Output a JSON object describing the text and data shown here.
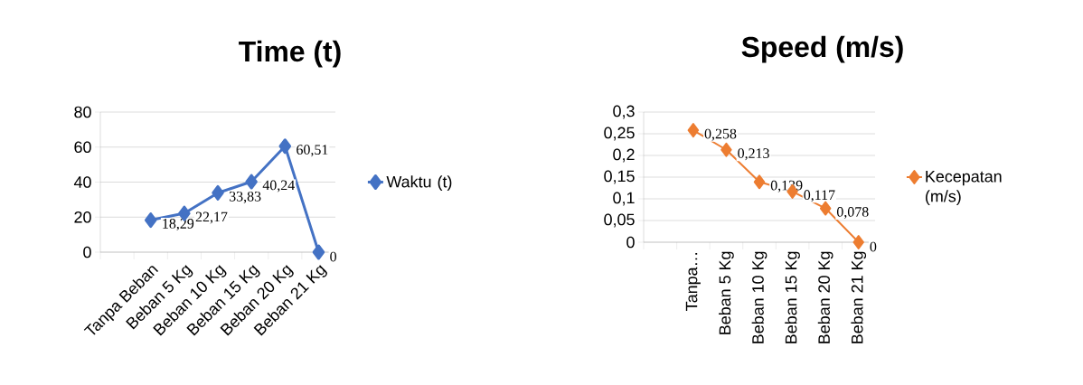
{
  "chart_data": [
    {
      "type": "line",
      "title": "Time (t)",
      "categories": [
        null,
        "Tanpa Beban",
        "Beban 5 Kg",
        "Beban 10 Kg",
        "Beban 15 Kg",
        "Beban 20 Kg",
        "Beban 21 Kg"
      ],
      "series": [
        {
          "name": "Waktu (t)",
          "color": "#4472c4",
          "values": [
            null,
            18.29,
            22.17,
            33.83,
            40.24,
            60.51,
            0
          ],
          "value_labels": [
            null,
            "18,29",
            "22,17",
            "33,83",
            "40,24",
            "60,51",
            "0"
          ]
        }
      ],
      "ylim": [
        0,
        80
      ],
      "yticks": [
        0,
        20,
        40,
        60,
        80
      ],
      "grid": "y",
      "legend": "right",
      "marker": "diamond",
      "line_style": "solid"
    },
    {
      "type": "line",
      "title": "Speed (m/s)",
      "categories": [
        null,
        "Tanpa…",
        "Beban 5 Kg",
        "Beban 10 Kg",
        "Beban 15 Kg",
        "Beban 20 Kg",
        "Beban 21 Kg"
      ],
      "series": [
        {
          "name": "Kecepatan (m/s)",
          "color": "#ed7d31",
          "values": [
            null,
            0.258,
            0.213,
            0.139,
            0.117,
            0.078,
            0
          ],
          "value_labels": [
            null,
            "0,258",
            "0,213",
            "0,139",
            "0,117",
            "0,078",
            "0"
          ]
        }
      ],
      "ylim": [
        0,
        0.3
      ],
      "yticks": [
        0,
        {
          "value": 0.05,
          "label": "0,05"
        },
        {
          "value": 0.1,
          "label": "0,1"
        },
        {
          "value": 0.15,
          "label": "0,15"
        },
        {
          "value": 0.2,
          "label": "0,2"
        },
        {
          "value": 0.25,
          "label": "0,25"
        },
        {
          "value": 0.3,
          "label": "0,3"
        }
      ],
      "grid": "y",
      "legend": "right",
      "marker": "diamond",
      "line_style": "solid"
    }
  ]
}
